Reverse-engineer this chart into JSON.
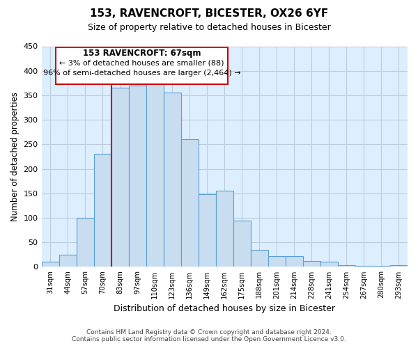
{
  "title": "153, RAVENCROFT, BICESTER, OX26 6YF",
  "subtitle": "Size of property relative to detached houses in Bicester",
  "xlabel": "Distribution of detached houses by size in Bicester",
  "ylabel": "Number of detached properties",
  "footer_line1": "Contains HM Land Registry data © Crown copyright and database right 2024.",
  "footer_line2": "Contains public sector information licensed under the Open Government Licence v3.0.",
  "bar_labels": [
    "31sqm",
    "44sqm",
    "57sqm",
    "70sqm",
    "83sqm",
    "97sqm",
    "110sqm",
    "123sqm",
    "136sqm",
    "149sqm",
    "162sqm",
    "175sqm",
    "188sqm",
    "201sqm",
    "214sqm",
    "228sqm",
    "241sqm",
    "254sqm",
    "267sqm",
    "280sqm",
    "293sqm"
  ],
  "bar_values": [
    10,
    25,
    100,
    230,
    365,
    370,
    375,
    355,
    260,
    148,
    155,
    95,
    35,
    22,
    22,
    12,
    10,
    3,
    2,
    2,
    3
  ],
  "bar_color": "#c8ddf0",
  "bar_edge_color": "#5a9fd4",
  "ax_bg_color": "#ddeeff",
  "ylim": [
    0,
    450
  ],
  "yticks": [
    0,
    50,
    100,
    150,
    200,
    250,
    300,
    350,
    400,
    450
  ],
  "property_line_x": 3.5,
  "annotation_title": "153 RAVENCROFT: 67sqm",
  "annotation_line1": "← 3% of detached houses are smaller (88)",
  "annotation_line2": "96% of semi-detached houses are larger (2,464) →",
  "vline_color": "#cc0000",
  "box_edge_color": "#cc0000",
  "background_color": "#ffffff",
  "grid_color": "#bbccdd"
}
